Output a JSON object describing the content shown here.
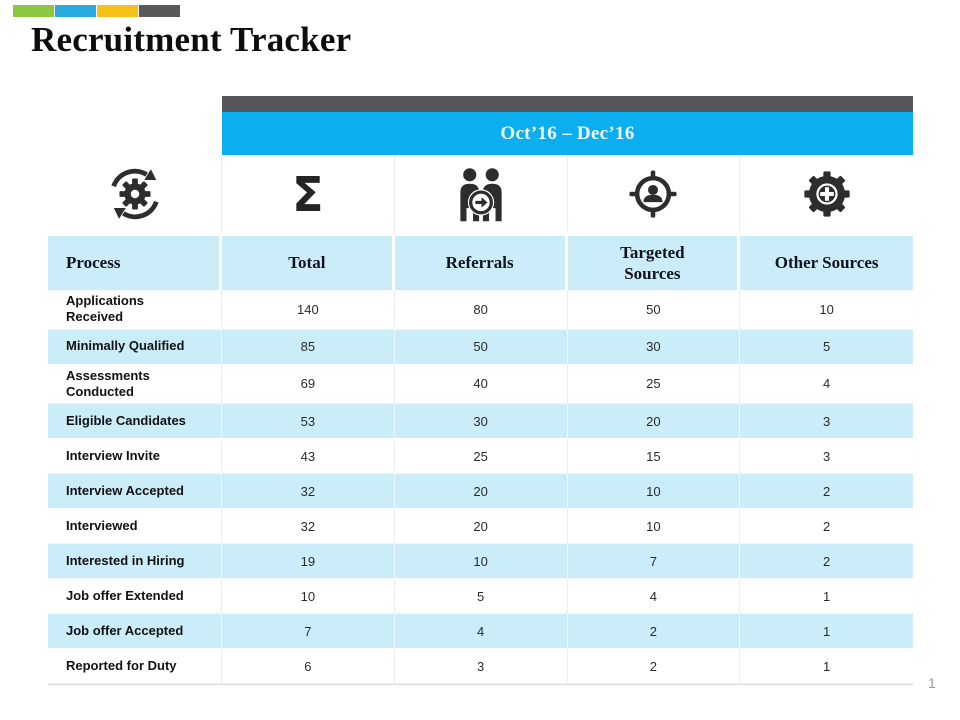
{
  "slide": {
    "title": "Recruitment Tracker",
    "page_number": "1",
    "accent_bar_colors": [
      "#8DC63F",
      "#29ABE2",
      "#F3C117",
      "#58595B"
    ]
  },
  "table": {
    "period_header": "Oct’16 – Dec’16",
    "colors": {
      "period_top_band": "#54565A",
      "period_band": "#0BAEEF",
      "light_blue": "#CBECF9",
      "icon_color": "#2D2D2D"
    },
    "icons": [
      "process-sync-icon",
      "sigma-icon",
      "referrals-icon",
      "targeted-sources-icon",
      "gear-plus-icon"
    ],
    "columns": [
      "Process",
      "Total",
      "Referrals",
      "Targeted Sources",
      "Other Sources"
    ],
    "rows": [
      {
        "label": "Applications Received",
        "values": [
          "140",
          "80",
          "50",
          "10"
        ]
      },
      {
        "label": "Minimally Qualified",
        "values": [
          "85",
          "50",
          "30",
          "5"
        ]
      },
      {
        "label": "Assessments Conducted",
        "values": [
          "69",
          "40",
          "25",
          "4"
        ]
      },
      {
        "label": "Eligible Candidates",
        "values": [
          "53",
          "30",
          "20",
          "3"
        ]
      },
      {
        "label": "Interview Invite",
        "values": [
          "43",
          "25",
          "15",
          "3"
        ]
      },
      {
        "label": "Interview Accepted",
        "values": [
          "32",
          "20",
          "10",
          "2"
        ]
      },
      {
        "label": "Interviewed",
        "values": [
          "32",
          "20",
          "10",
          "2"
        ]
      },
      {
        "label": "Interested in Hiring",
        "values": [
          "19",
          "10",
          "7",
          "2"
        ]
      },
      {
        "label": "Job offer Extended",
        "values": [
          "10",
          "5",
          "4",
          "1"
        ]
      },
      {
        "label": "Job offer Accepted",
        "values": [
          "7",
          "4",
          "2",
          "1"
        ]
      },
      {
        "label": "Reported for Duty",
        "values": [
          "6",
          "3",
          "2",
          "1"
        ]
      }
    ]
  }
}
